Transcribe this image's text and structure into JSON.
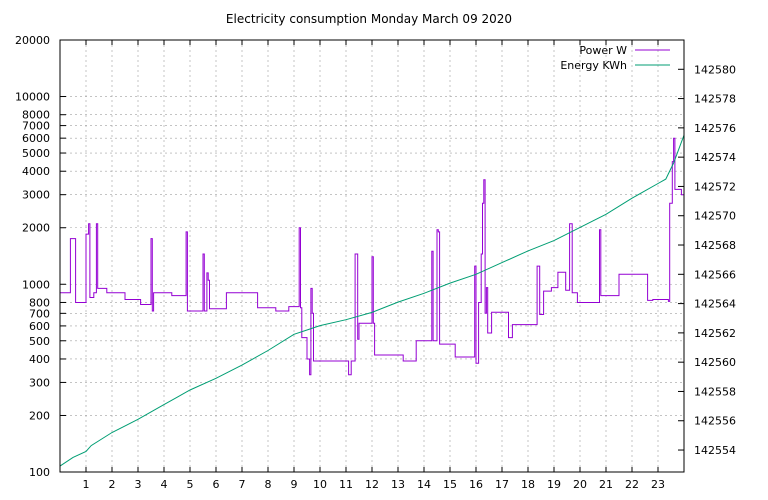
{
  "chart_data": {
    "type": "line",
    "title": "Electricity consumption Monday March 09 2020",
    "xlabel": "",
    "ylabel": "",
    "y2label": "",
    "grid": true,
    "legend_position": "top-right",
    "x_range": [
      0,
      24
    ],
    "x_ticks": [
      "1",
      "2",
      "3",
      "4",
      "5",
      "6",
      "7",
      "8",
      "9",
      "10",
      "11",
      "12",
      "13",
      "14",
      "15",
      "16",
      "17",
      "18",
      "19",
      "20",
      "21",
      "22",
      "23"
    ],
    "y_scale": "log",
    "y_range": [
      100,
      20000
    ],
    "y_ticks": [
      {
        "v": 100,
        "label": "100"
      },
      {
        "v": 200,
        "label": "200"
      },
      {
        "v": 300,
        "label": "300"
      },
      {
        "v": 400,
        "label": "400"
      },
      {
        "v": 500,
        "label": "500"
      },
      {
        "v": 600,
        "label": "600"
      },
      {
        "v": 700,
        "label": "700"
      },
      {
        "v": 800,
        "label": "800"
      },
      {
        "v": 1000,
        "label": "1000"
      },
      {
        "v": 2000,
        "label": "2000"
      },
      {
        "v": 3000,
        "label": "3000"
      },
      {
        "v": 4000,
        "label": "4000"
      },
      {
        "v": 5000,
        "label": "5000"
      },
      {
        "v": 6000,
        "label": "6000"
      },
      {
        "v": 7000,
        "label": "7000"
      },
      {
        "v": 8000,
        "label": "8000"
      },
      {
        "v": 10000,
        "label": "10000"
      },
      {
        "v": 20000,
        "label": "20000"
      }
    ],
    "y2_range": [
      142552.5,
      142582
    ],
    "y2_ticks": [
      "142554",
      "142556",
      "142558",
      "142560",
      "142562",
      "142564",
      "142566",
      "142568",
      "142570",
      "142572",
      "142574",
      "142576",
      "142578",
      "142580"
    ],
    "series": [
      {
        "name": "Power W",
        "axis": "y",
        "step": true,
        "color": "#9400d3",
        "points": [
          [
            0,
            900
          ],
          [
            0.4,
            1750
          ],
          [
            0.6,
            800
          ],
          [
            1.0,
            1850
          ],
          [
            1.1,
            2100
          ],
          [
            1.15,
            850
          ],
          [
            1.3,
            900
          ],
          [
            1.4,
            2100
          ],
          [
            1.45,
            950
          ],
          [
            1.8,
            900
          ],
          [
            2.5,
            830
          ],
          [
            3.1,
            780
          ],
          [
            3.5,
            1750
          ],
          [
            3.55,
            720
          ],
          [
            3.6,
            900
          ],
          [
            4.3,
            870
          ],
          [
            4.85,
            1900
          ],
          [
            4.9,
            720
          ],
          [
            5.5,
            1450
          ],
          [
            5.55,
            720
          ],
          [
            5.65,
            1150
          ],
          [
            5.7,
            1050
          ],
          [
            5.75,
            740
          ],
          [
            6.4,
            900
          ],
          [
            7.6,
            750
          ],
          [
            8.3,
            720
          ],
          [
            8.8,
            760
          ],
          [
            9.2,
            2000
          ],
          [
            9.25,
            750
          ],
          [
            9.3,
            520
          ],
          [
            9.5,
            400
          ],
          [
            9.6,
            330
          ],
          [
            9.65,
            950
          ],
          [
            9.7,
            700
          ],
          [
            9.75,
            390
          ],
          [
            11.1,
            330
          ],
          [
            11.2,
            390
          ],
          [
            11.35,
            1450
          ],
          [
            11.45,
            510
          ],
          [
            11.5,
            620
          ],
          [
            12.0,
            1400
          ],
          [
            12.05,
            620
          ],
          [
            12.1,
            420
          ],
          [
            13.2,
            390
          ],
          [
            13.7,
            500
          ],
          [
            14.3,
            1500
          ],
          [
            14.35,
            500
          ],
          [
            14.5,
            1950
          ],
          [
            14.55,
            1900
          ],
          [
            14.6,
            480
          ],
          [
            15.2,
            410
          ],
          [
            15.95,
            1250
          ],
          [
            16.0,
            380
          ],
          [
            16.1,
            800
          ],
          [
            16.2,
            1450
          ],
          [
            16.25,
            2700
          ],
          [
            16.3,
            3600
          ],
          [
            16.35,
            700
          ],
          [
            16.4,
            960
          ],
          [
            16.45,
            550
          ],
          [
            16.6,
            710
          ],
          [
            17.25,
            520
          ],
          [
            17.4,
            610
          ],
          [
            18.35,
            1250
          ],
          [
            18.45,
            690
          ],
          [
            18.6,
            920
          ],
          [
            18.9,
            960
          ],
          [
            19.15,
            1160
          ],
          [
            19.45,
            930
          ],
          [
            19.6,
            2100
          ],
          [
            19.7,
            900
          ],
          [
            19.9,
            800
          ],
          [
            20.75,
            1950
          ],
          [
            20.8,
            870
          ],
          [
            21.5,
            1130
          ],
          [
            22.6,
            820
          ],
          [
            22.8,
            830
          ],
          [
            23.4,
            810
          ],
          [
            23.45,
            2700
          ],
          [
            23.55,
            4500
          ],
          [
            23.6,
            6000
          ],
          [
            23.65,
            3200
          ],
          [
            23.9,
            3000
          ],
          [
            24.0,
            3000
          ]
        ]
      },
      {
        "name": "Energy KWh",
        "axis": "y2",
        "step": false,
        "color": "#009e73",
        "points": [
          [
            0,
            142552.9
          ],
          [
            0.5,
            142553.5
          ],
          [
            1.0,
            142553.9
          ],
          [
            1.2,
            142554.3
          ],
          [
            2.0,
            142555.2
          ],
          [
            3.0,
            142556.1
          ],
          [
            4.0,
            142557.1
          ],
          [
            4.5,
            142557.6
          ],
          [
            5.0,
            142558.1
          ],
          [
            6.0,
            142558.9
          ],
          [
            7.0,
            142559.8
          ],
          [
            8.0,
            142560.8
          ],
          [
            9.0,
            142561.9
          ],
          [
            9.5,
            142562.2
          ],
          [
            10.0,
            142562.5
          ],
          [
            11.0,
            142562.9
          ],
          [
            12.0,
            142563.4
          ],
          [
            13.0,
            142564.1
          ],
          [
            14.0,
            142564.7
          ],
          [
            15.0,
            142565.4
          ],
          [
            16.0,
            142566.0
          ],
          [
            17.0,
            142566.8
          ],
          [
            18.0,
            142567.6
          ],
          [
            19.0,
            142568.3
          ],
          [
            20.0,
            142569.2
          ],
          [
            21.0,
            142570.1
          ],
          [
            22.0,
            142571.2
          ],
          [
            23.0,
            142572.2
          ],
          [
            23.3,
            142572.5
          ],
          [
            23.6,
            142573.6
          ],
          [
            24.0,
            142575.5
          ]
        ]
      }
    ]
  }
}
